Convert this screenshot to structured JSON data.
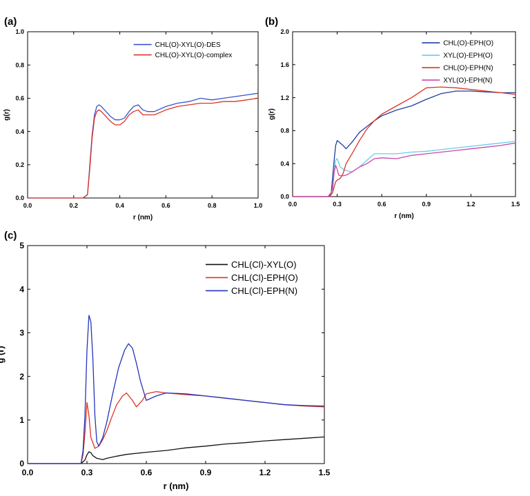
{
  "chart_data": [
    {
      "panel": "(a)",
      "type": "line",
      "xlabel": "r (nm)",
      "ylabel": "g(r)",
      "xlim": [
        0.0,
        1.0
      ],
      "ylim": [
        0.0,
        1.0
      ],
      "xticks": [
        "0.0",
        "0.2",
        "0.4",
        "0.6",
        "0.8",
        "1.0"
      ],
      "yticks": [
        "0.0",
        "0.2",
        "0.4",
        "0.6",
        "0.8",
        "1.0"
      ],
      "legend_position": "top-right",
      "series": [
        {
          "name": "CHL(O)-XYL(O)-DES",
          "color": "#3355cc",
          "x": [
            0.0,
            0.24,
            0.26,
            0.27,
            0.28,
            0.29,
            0.3,
            0.31,
            0.32,
            0.34,
            0.36,
            0.38,
            0.4,
            0.42,
            0.44,
            0.46,
            0.48,
            0.5,
            0.52,
            0.55,
            0.6,
            0.65,
            0.7,
            0.75,
            0.8,
            0.85,
            0.9,
            0.95,
            1.0
          ],
          "y": [
            0.0,
            0.0,
            0.02,
            0.2,
            0.38,
            0.5,
            0.55,
            0.56,
            0.55,
            0.52,
            0.49,
            0.47,
            0.47,
            0.48,
            0.52,
            0.55,
            0.56,
            0.53,
            0.52,
            0.52,
            0.55,
            0.57,
            0.58,
            0.6,
            0.59,
            0.6,
            0.61,
            0.62,
            0.63
          ]
        },
        {
          "name": "CHL(O)-XYL(O)-complex",
          "color": "#dd3322",
          "x": [
            0.0,
            0.24,
            0.26,
            0.27,
            0.28,
            0.29,
            0.3,
            0.31,
            0.32,
            0.34,
            0.36,
            0.38,
            0.4,
            0.42,
            0.44,
            0.46,
            0.48,
            0.5,
            0.52,
            0.55,
            0.6,
            0.65,
            0.7,
            0.75,
            0.8,
            0.85,
            0.9,
            0.95,
            1.0
          ],
          "y": [
            0.0,
            0.0,
            0.02,
            0.18,
            0.36,
            0.48,
            0.52,
            0.53,
            0.52,
            0.49,
            0.46,
            0.44,
            0.44,
            0.46,
            0.5,
            0.52,
            0.53,
            0.5,
            0.5,
            0.5,
            0.53,
            0.55,
            0.56,
            0.57,
            0.57,
            0.58,
            0.58,
            0.59,
            0.6
          ]
        }
      ]
    },
    {
      "panel": "(b)",
      "type": "line",
      "xlabel": "r (nm)",
      "ylabel": "g(r)",
      "xlim": [
        0.0,
        1.5
      ],
      "ylim": [
        0.0,
        2.0
      ],
      "xticks": [
        "0.0",
        "0.3",
        "0.6",
        "0.9",
        "1.2",
        "1.5"
      ],
      "yticks": [
        "0.0",
        "0.4",
        "0.8",
        "1.2",
        "1.6",
        "2.0"
      ],
      "legend_position": "top-right",
      "series": [
        {
          "name": "CHL(O)-EPH(O)",
          "color": "#1f3e9e",
          "x": [
            0.0,
            0.24,
            0.26,
            0.28,
            0.29,
            0.3,
            0.32,
            0.34,
            0.36,
            0.4,
            0.45,
            0.5,
            0.55,
            0.6,
            0.7,
            0.8,
            0.9,
            1.0,
            1.1,
            1.2,
            1.3,
            1.4,
            1.5
          ],
          "y": [
            0.0,
            0.0,
            0.05,
            0.45,
            0.62,
            0.68,
            0.65,
            0.62,
            0.58,
            0.66,
            0.78,
            0.85,
            0.92,
            0.98,
            1.05,
            1.1,
            1.18,
            1.25,
            1.28,
            1.28,
            1.27,
            1.26,
            1.26
          ]
        },
        {
          "name": "XYL(O)-EPH(O)",
          "color": "#66ccee",
          "x": [
            0.0,
            0.25,
            0.27,
            0.28,
            0.29,
            0.3,
            0.32,
            0.35,
            0.4,
            0.45,
            0.5,
            0.55,
            0.6,
            0.7,
            0.8,
            0.9,
            1.0,
            1.1,
            1.2,
            1.3,
            1.4,
            1.5
          ],
          "y": [
            0.0,
            0.0,
            0.1,
            0.35,
            0.44,
            0.46,
            0.36,
            0.32,
            0.3,
            0.36,
            0.44,
            0.52,
            0.52,
            0.52,
            0.54,
            0.55,
            0.57,
            0.59,
            0.61,
            0.63,
            0.65,
            0.67
          ]
        },
        {
          "name": "CHL(O)-EPH(N)",
          "color": "#dd3322",
          "x": [
            0.0,
            0.25,
            0.27,
            0.28,
            0.29,
            0.3,
            0.32,
            0.34,
            0.36,
            0.4,
            0.45,
            0.5,
            0.55,
            0.6,
            0.7,
            0.8,
            0.9,
            1.0,
            1.1,
            1.2,
            1.3,
            1.4,
            1.5
          ],
          "y": [
            0.0,
            0.0,
            0.05,
            0.12,
            0.18,
            0.2,
            0.22,
            0.28,
            0.4,
            0.52,
            0.68,
            0.82,
            0.92,
            1.0,
            1.1,
            1.2,
            1.32,
            1.33,
            1.32,
            1.3,
            1.28,
            1.26,
            1.24
          ]
        },
        {
          "name": "XYL(O)-EPH(N)",
          "color": "#cc44aa",
          "x": [
            0.0,
            0.25,
            0.27,
            0.28,
            0.29,
            0.3,
            0.31,
            0.33,
            0.36,
            0.4,
            0.45,
            0.5,
            0.55,
            0.6,
            0.7,
            0.8,
            0.9,
            1.0,
            1.1,
            1.2,
            1.3,
            1.4,
            1.5
          ],
          "y": [
            0.0,
            0.0,
            0.1,
            0.3,
            0.38,
            0.33,
            0.26,
            0.25,
            0.26,
            0.3,
            0.36,
            0.4,
            0.46,
            0.47,
            0.46,
            0.5,
            0.52,
            0.54,
            0.56,
            0.58,
            0.6,
            0.62,
            0.65
          ]
        }
      ]
    },
    {
      "panel": "(c)",
      "type": "line",
      "xlabel": "r (nm)",
      "ylabel": "g (r)",
      "xlim": [
        0.0,
        1.5
      ],
      "ylim": [
        0,
        5
      ],
      "xticks": [
        "0.0",
        "0.3",
        "0.6",
        "0.9",
        "1.2",
        "1.5"
      ],
      "yticks": [
        "0",
        "1",
        "2",
        "3",
        "4",
        "5"
      ],
      "legend_position": "top-right",
      "series": [
        {
          "name": "CHL(Cl)-XYL(O)",
          "color": "#111111",
          "x": [
            0.0,
            0.27,
            0.29,
            0.3,
            0.31,
            0.32,
            0.33,
            0.35,
            0.38,
            0.4,
            0.45,
            0.5,
            0.6,
            0.7,
            0.8,
            0.9,
            1.0,
            1.1,
            1.2,
            1.3,
            1.4,
            1.5
          ],
          "y": [
            0.0,
            0.0,
            0.08,
            0.2,
            0.27,
            0.25,
            0.18,
            0.12,
            0.09,
            0.12,
            0.17,
            0.21,
            0.26,
            0.3,
            0.36,
            0.4,
            0.45,
            0.48,
            0.52,
            0.55,
            0.58,
            0.61
          ]
        },
        {
          "name": "CHL(Cl)-EPH(O)",
          "color": "#dd3322",
          "x": [
            0.0,
            0.27,
            0.28,
            0.29,
            0.3,
            0.31,
            0.32,
            0.34,
            0.36,
            0.38,
            0.4,
            0.42,
            0.45,
            0.48,
            0.5,
            0.53,
            0.55,
            0.58,
            0.6,
            0.65,
            0.7,
            0.8,
            0.9,
            1.0,
            1.1,
            1.2,
            1.3,
            1.4,
            1.5
          ],
          "y": [
            0.0,
            0.0,
            0.2,
            0.7,
            1.4,
            1.1,
            0.6,
            0.35,
            0.4,
            0.55,
            0.75,
            1.0,
            1.35,
            1.55,
            1.62,
            1.45,
            1.3,
            1.45,
            1.6,
            1.65,
            1.62,
            1.58,
            1.55,
            1.5,
            1.45,
            1.4,
            1.35,
            1.32,
            1.3
          ]
        },
        {
          "name": "CHL(Cl)-EPH(N)",
          "color": "#2233bb",
          "x": [
            0.0,
            0.27,
            0.28,
            0.29,
            0.3,
            0.31,
            0.32,
            0.33,
            0.34,
            0.35,
            0.36,
            0.38,
            0.4,
            0.43,
            0.46,
            0.49,
            0.51,
            0.53,
            0.55,
            0.57,
            0.6,
            0.65,
            0.7,
            0.8,
            0.9,
            1.0,
            1.1,
            1.2,
            1.3,
            1.4,
            1.5
          ],
          "y": [
            0.0,
            0.0,
            0.3,
            1.1,
            2.6,
            3.4,
            3.25,
            2.4,
            1.1,
            0.5,
            0.4,
            0.6,
            0.95,
            1.6,
            2.2,
            2.6,
            2.75,
            2.65,
            2.3,
            1.9,
            1.45,
            1.55,
            1.62,
            1.6,
            1.55,
            1.5,
            1.45,
            1.4,
            1.35,
            1.33,
            1.32
          ]
        }
      ]
    }
  ]
}
